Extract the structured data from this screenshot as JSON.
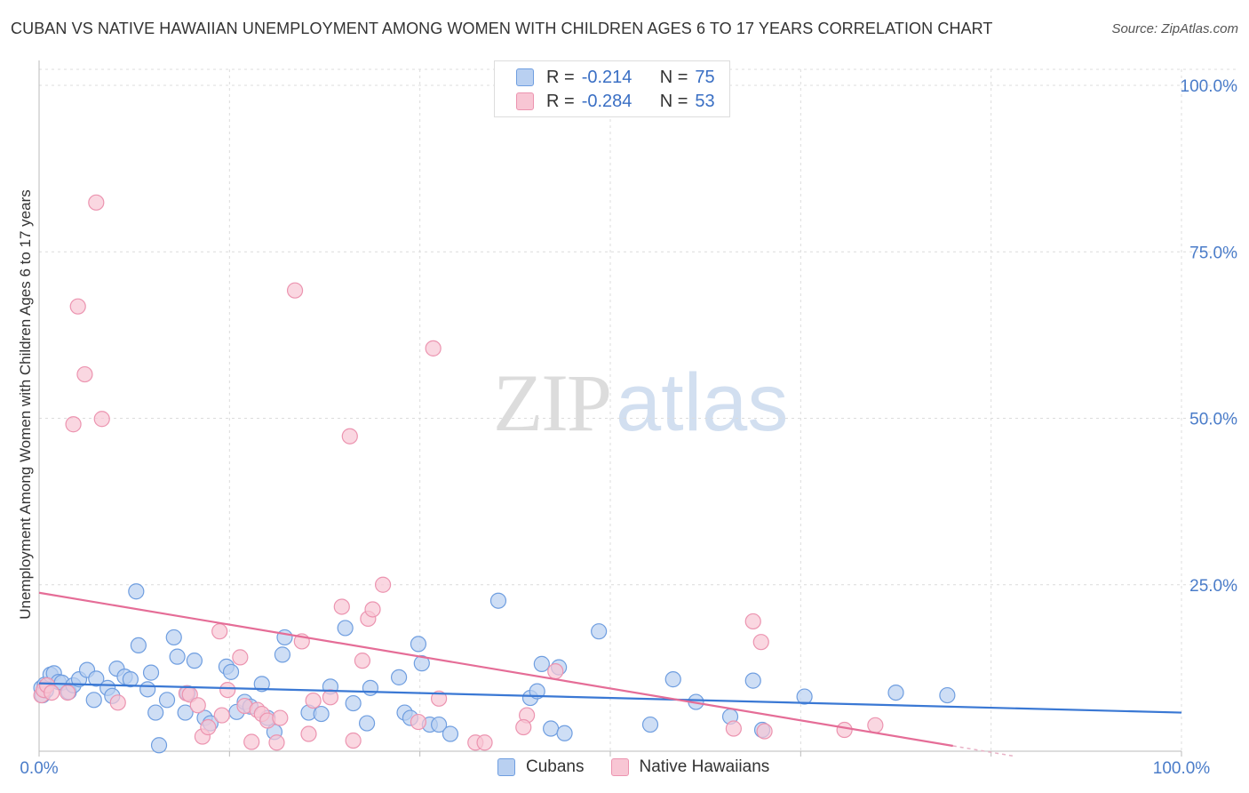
{
  "title": "CUBAN VS NATIVE HAWAIIAN UNEMPLOYMENT AMONG WOMEN WITH CHILDREN AGES 6 TO 17 YEARS CORRELATION CHART",
  "source": "Source: ZipAtlas.com",
  "watermark": {
    "zip": "ZIP",
    "atlas": "atlas"
  },
  "legend": {
    "r_label": "R =",
    "n_label": "N =",
    "series": [
      {
        "name": "Cubans",
        "r": "-0.214",
        "n": "75"
      },
      {
        "name": "Native Hawaiians",
        "r": "-0.284",
        "n": "53"
      }
    ]
  },
  "colors": {
    "cubans_fill": "#b9d0f1",
    "cubans_stroke": "#6f9ee0",
    "cubans_line": "#3a78d4",
    "hawaiians_fill": "#f8c6d4",
    "hawaiians_stroke": "#ec94b0",
    "hawaiians_line": "#e56d97",
    "tick": "#4a7cc9",
    "grid": "#dcdcdc"
  },
  "chart_data": {
    "type": "scatter",
    "title": "CUBAN VS NATIVE HAWAIIAN UNEMPLOYMENT AMONG WOMEN WITH CHILDREN AGES 6 TO 17 YEARS CORRELATION CHART",
    "xlabel": "",
    "ylabel": "Unemployment Among Women with Children Ages 6 to 17 years",
    "xlim": [
      0,
      100
    ],
    "ylim": [
      0,
      100
    ],
    "x_ticks": [
      "0.0%",
      "100.0%"
    ],
    "y_ticks": [
      {
        "value": 25,
        "label": "25.0%"
      },
      {
        "value": 50,
        "label": "50.0%"
      },
      {
        "value": 75,
        "label": "75.0%"
      },
      {
        "value": 100,
        "label": "100.0%"
      }
    ],
    "grid": true,
    "series": [
      {
        "name": "Cubans",
        "r": -0.214,
        "n": 75,
        "trend": {
          "x": [
            0,
            100
          ],
          "y": [
            10.2,
            5.8
          ]
        },
        "points": [
          [
            0.2,
            9.5
          ],
          [
            0.3,
            8.4
          ],
          [
            0.5,
            10.0
          ],
          [
            0.6,
            9.1
          ],
          [
            1.0,
            11.5
          ],
          [
            1.3,
            11.7
          ],
          [
            1.7,
            10.4
          ],
          [
            2.0,
            10.3
          ],
          [
            2.6,
            8.9
          ],
          [
            3.0,
            9.9
          ],
          [
            3.5,
            10.8
          ],
          [
            4.2,
            12.2
          ],
          [
            4.8,
            7.7
          ],
          [
            5.0,
            10.9
          ],
          [
            6.0,
            9.5
          ],
          [
            6.4,
            8.3
          ],
          [
            6.8,
            12.4
          ],
          [
            7.5,
            11.2
          ],
          [
            8.0,
            10.8
          ],
          [
            8.5,
            24.0
          ],
          [
            8.7,
            15.9
          ],
          [
            9.5,
            9.3
          ],
          [
            9.8,
            11.8
          ],
          [
            10.2,
            5.8
          ],
          [
            10.5,
            0.9
          ],
          [
            11.2,
            7.7
          ],
          [
            11.8,
            17.1
          ],
          [
            12.1,
            14.2
          ],
          [
            12.8,
            5.8
          ],
          [
            13.0,
            8.7
          ],
          [
            13.6,
            13.6
          ],
          [
            14.5,
            5.0
          ],
          [
            15.0,
            4.2
          ],
          [
            16.4,
            12.7
          ],
          [
            16.8,
            11.9
          ],
          [
            17.3,
            5.9
          ],
          [
            18.0,
            7.4
          ],
          [
            18.5,
            6.7
          ],
          [
            19.5,
            10.1
          ],
          [
            20.0,
            5.0
          ],
          [
            20.6,
            2.9
          ],
          [
            21.3,
            14.5
          ],
          [
            21.5,
            17.1
          ],
          [
            23.6,
            5.8
          ],
          [
            24.7,
            5.6
          ],
          [
            25.5,
            9.7
          ],
          [
            26.8,
            18.5
          ],
          [
            27.5,
            7.2
          ],
          [
            28.7,
            4.2
          ],
          [
            29.0,
            9.5
          ],
          [
            31.5,
            11.1
          ],
          [
            32.0,
            5.8
          ],
          [
            32.5,
            5.0
          ],
          [
            33.2,
            16.1
          ],
          [
            33.5,
            13.2
          ],
          [
            34.2,
            4.0
          ],
          [
            35.0,
            4.0
          ],
          [
            36.0,
            2.6
          ],
          [
            40.2,
            22.6
          ],
          [
            43.0,
            8.0
          ],
          [
            43.6,
            9.0
          ],
          [
            44.0,
            13.1
          ],
          [
            45.5,
            12.6
          ],
          [
            44.8,
            3.4
          ],
          [
            46.0,
            2.7
          ],
          [
            49.0,
            18.0
          ],
          [
            53.5,
            4.0
          ],
          [
            55.5,
            10.8
          ],
          [
            57.5,
            7.4
          ],
          [
            60.5,
            5.2
          ],
          [
            62.5,
            10.6
          ],
          [
            63.3,
            3.2
          ],
          [
            67.0,
            8.2
          ],
          [
            75.0,
            8.8
          ],
          [
            79.5,
            8.4
          ]
        ]
      },
      {
        "name": "Native Hawaiians",
        "r": -0.284,
        "n": 53,
        "trend": {
          "x": [
            0,
            80
          ],
          "y": [
            23.8,
            0.8
          ]
        },
        "points": [
          [
            0.2,
            8.4
          ],
          [
            0.4,
            9.2
          ],
          [
            0.7,
            9.9
          ],
          [
            1.1,
            8.8
          ],
          [
            2.5,
            8.8
          ],
          [
            3.0,
            49.1
          ],
          [
            3.4,
            66.8
          ],
          [
            4.0,
            56.6
          ],
          [
            5.0,
            82.4
          ],
          [
            5.5,
            49.9
          ],
          [
            6.9,
            7.3
          ],
          [
            12.9,
            8.7
          ],
          [
            13.2,
            8.5
          ],
          [
            13.9,
            6.9
          ],
          [
            14.3,
            2.2
          ],
          [
            14.8,
            3.6
          ],
          [
            15.8,
            18.0
          ],
          [
            16.0,
            5.4
          ],
          [
            16.5,
            9.2
          ],
          [
            17.6,
            14.1
          ],
          [
            18.0,
            6.8
          ],
          [
            18.6,
            1.4
          ],
          [
            19.1,
            6.2
          ],
          [
            19.5,
            5.6
          ],
          [
            20.0,
            4.6
          ],
          [
            20.8,
            1.3
          ],
          [
            21.1,
            5.0
          ],
          [
            22.4,
            69.2
          ],
          [
            23.0,
            16.5
          ],
          [
            23.6,
            2.6
          ],
          [
            24.0,
            7.6
          ],
          [
            25.5,
            8.1
          ],
          [
            26.5,
            21.7
          ],
          [
            27.2,
            47.3
          ],
          [
            27.5,
            1.6
          ],
          [
            28.3,
            13.6
          ],
          [
            28.8,
            19.9
          ],
          [
            29.2,
            21.3
          ],
          [
            30.1,
            25.0
          ],
          [
            33.2,
            4.4
          ],
          [
            34.5,
            60.5
          ],
          [
            35.0,
            7.9
          ],
          [
            38.2,
            1.3
          ],
          [
            39.0,
            1.3
          ],
          [
            42.7,
            5.4
          ],
          [
            42.4,
            3.6
          ],
          [
            45.2,
            12.0
          ],
          [
            60.8,
            3.4
          ],
          [
            62.5,
            19.5
          ],
          [
            63.2,
            16.4
          ],
          [
            63.5,
            3.0
          ],
          [
            70.5,
            3.2
          ],
          [
            73.2,
            3.9
          ]
        ]
      }
    ],
    "bottom_legend": [
      "Cubans",
      "Native Hawaiians"
    ]
  }
}
